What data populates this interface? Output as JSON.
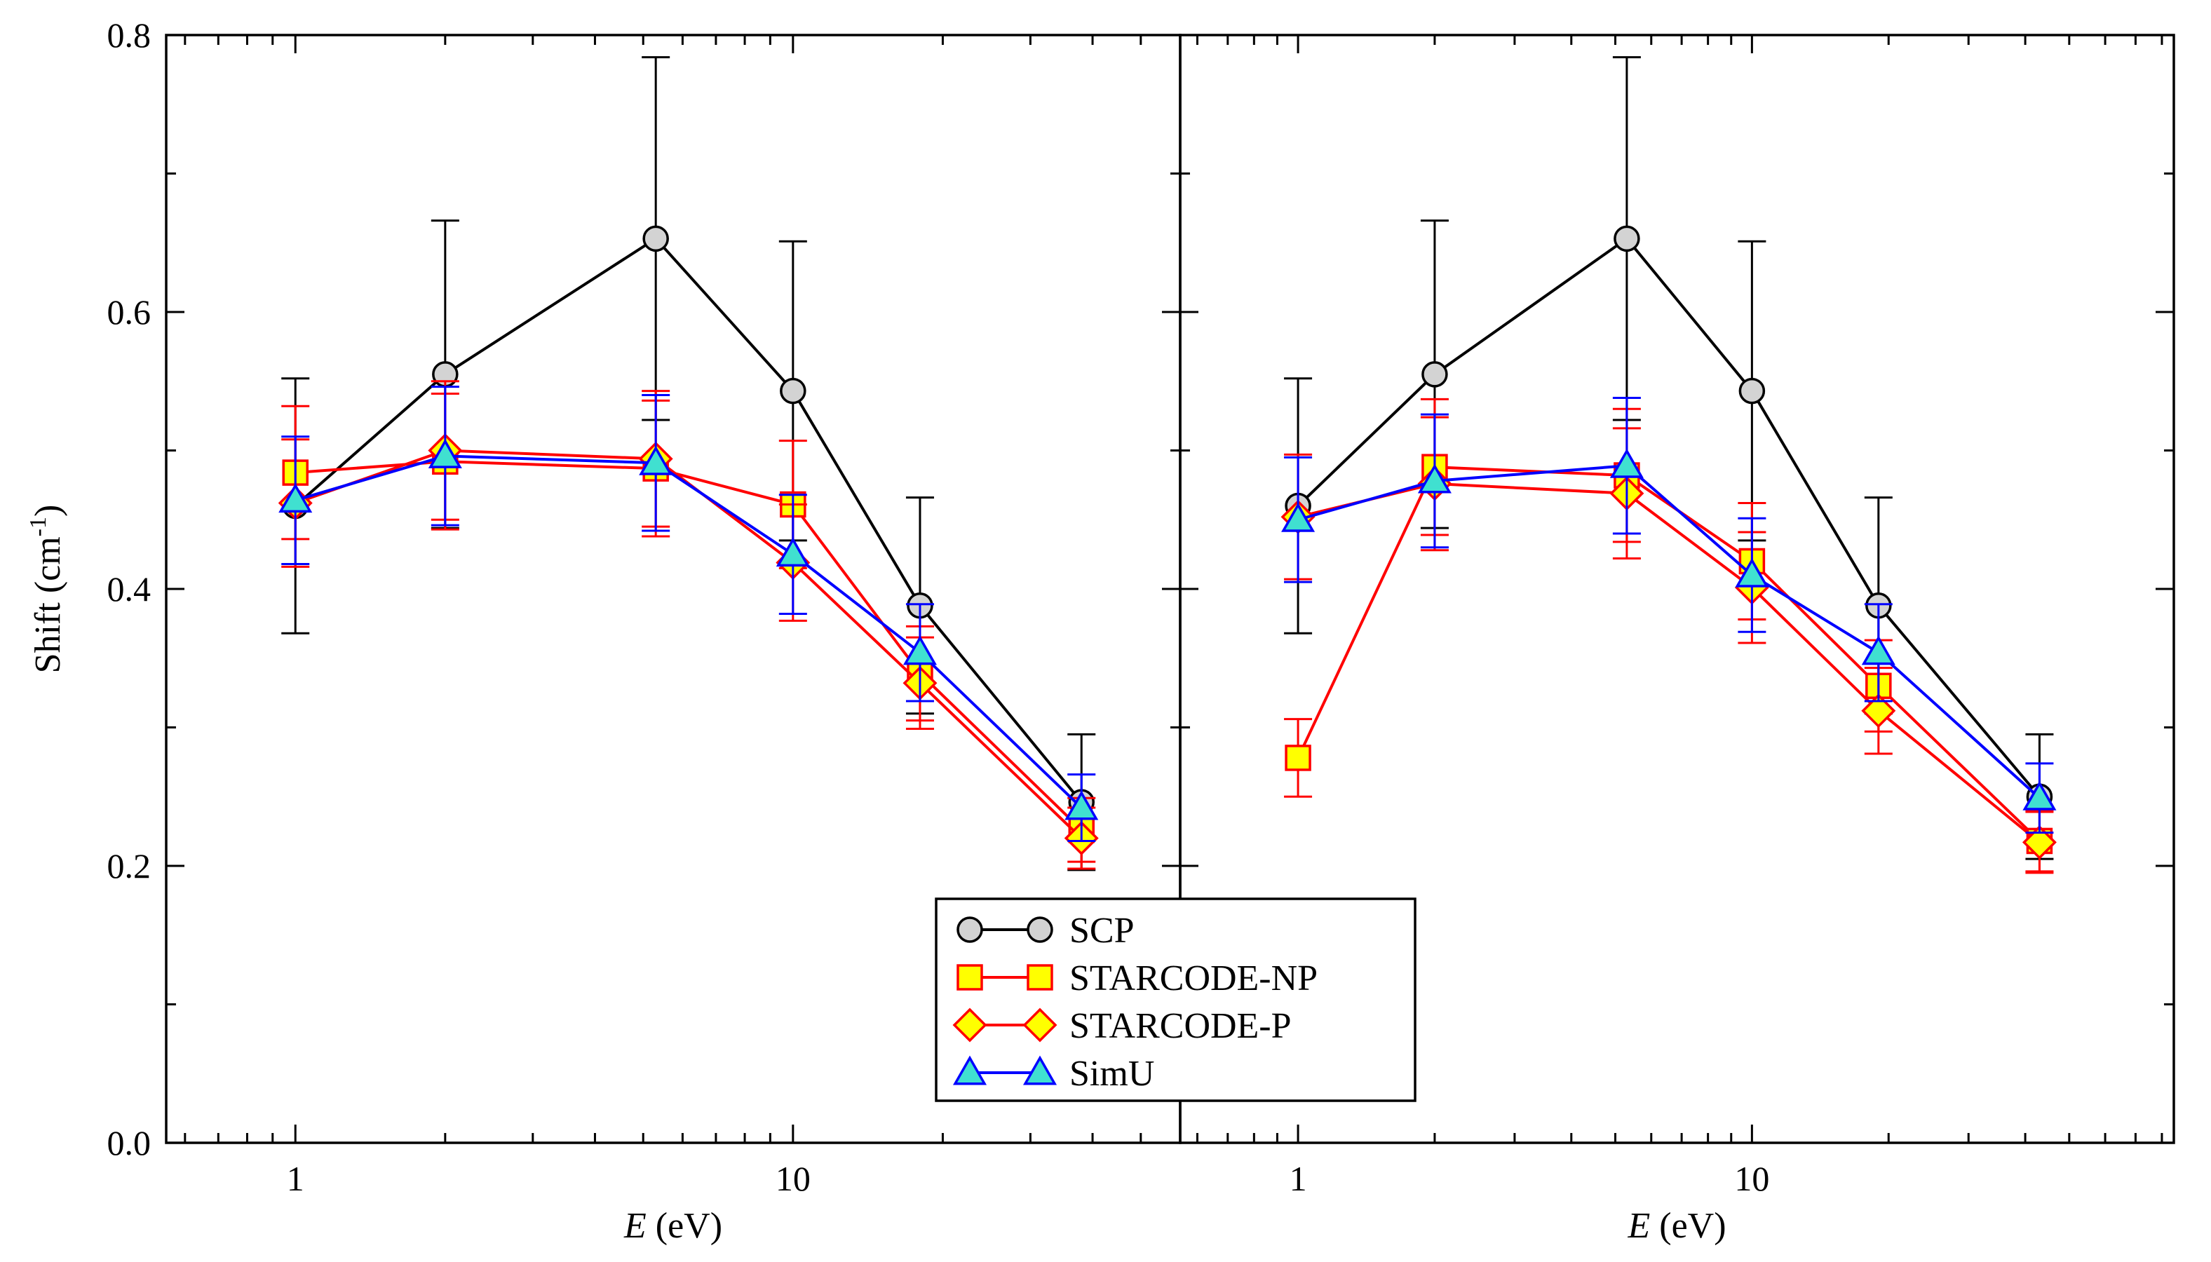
{
  "chart_data": [
    {
      "type": "line",
      "panel": "left",
      "xscale": "log",
      "xlim": [
        0.55,
        60
      ],
      "ylim": [
        0.0,
        0.8
      ],
      "xlabel": {
        "italic": "E",
        "rest": " (eV)"
      },
      "ylabel": "Shift (cm",
      "ylabel_sup": "-1",
      "ylabel_close": ")",
      "xticks": [
        "1",
        "10"
      ],
      "yticks": [
        "0.0",
        "0.2",
        "0.4",
        "0.6",
        "0.8"
      ],
      "series": [
        {
          "name": "SCP",
          "color": "#000000",
          "marker": "circle",
          "fill": "#d3d3d3",
          "x": [
            1,
            2,
            5.3,
            10,
            18,
            38
          ],
          "y": [
            0.46,
            0.555,
            0.653,
            0.543,
            0.388,
            0.246
          ],
          "err": [
            0.092,
            0.111,
            0.131,
            0.108,
            0.078,
            0.049
          ]
        },
        {
          "name": "STARCODE-NP",
          "color": "#ff0000",
          "marker": "square",
          "fill": "#ffff00",
          "x": [
            1,
            2,
            5.3,
            10,
            18,
            38
          ],
          "y": [
            0.484,
            0.492,
            0.487,
            0.461,
            0.339,
            0.226
          ],
          "err": [
            0.048,
            0.049,
            0.049,
            0.046,
            0.034,
            0.023
          ]
        },
        {
          "name": "STARCODE-P",
          "color": "#ff0000",
          "marker": "diamond",
          "fill": "#ffff00",
          "x": [
            1,
            2,
            5.3,
            10,
            18,
            38
          ],
          "y": [
            0.462,
            0.5,
            0.494,
            0.419,
            0.332,
            0.22
          ],
          "err": [
            0.046,
            0.05,
            0.049,
            0.042,
            0.033,
            0.022
          ]
        },
        {
          "name": "SimU",
          "color": "#0000ff",
          "marker": "triangle",
          "fill": "#40e0d0",
          "x": [
            1,
            2,
            5.3,
            10,
            18,
            38
          ],
          "y": [
            0.464,
            0.496,
            0.491,
            0.425,
            0.354,
            0.242
          ],
          "err": [
            0.046,
            0.05,
            0.049,
            0.043,
            0.035,
            0.024
          ]
        }
      ]
    },
    {
      "type": "line",
      "panel": "right",
      "xscale": "log",
      "xlim": [
        0.55,
        85
      ],
      "ylim": [
        0.0,
        0.8
      ],
      "xlabel": {
        "italic": "E",
        "rest": " (eV)"
      },
      "xticks": [
        "1",
        "10"
      ],
      "series": [
        {
          "name": "SCP",
          "color": "#000000",
          "marker": "circle",
          "fill": "#d3d3d3",
          "x": [
            1,
            2,
            5.3,
            10,
            19,
            43
          ],
          "y": [
            0.46,
            0.555,
            0.653,
            0.543,
            0.388,
            0.25
          ],
          "err": [
            0.092,
            0.111,
            0.131,
            0.108,
            0.078,
            0.045
          ]
        },
        {
          "name": "STARCODE-NP",
          "color": "#ff0000",
          "marker": "square",
          "fill": "#ffff00",
          "x": [
            1,
            2,
            5.3,
            10,
            19,
            43
          ],
          "y": [
            0.278,
            0.488,
            0.482,
            0.42,
            0.33,
            0.218
          ],
          "err": [
            0.028,
            0.049,
            0.048,
            0.042,
            0.033,
            0.022
          ]
        },
        {
          "name": "STARCODE-P",
          "color": "#ff0000",
          "marker": "diamond",
          "fill": "#ffff00",
          "x": [
            1,
            2,
            5.3,
            10,
            19,
            43
          ],
          "y": [
            0.452,
            0.476,
            0.469,
            0.401,
            0.312,
            0.217
          ],
          "err": [
            0.045,
            0.048,
            0.047,
            0.04,
            0.031,
            0.022
          ]
        },
        {
          "name": "SimU",
          "color": "#0000ff",
          "marker": "triangle",
          "fill": "#40e0d0",
          "x": [
            1,
            2,
            5.3,
            10,
            19,
            43
          ],
          "y": [
            0.45,
            0.478,
            0.489,
            0.41,
            0.354,
            0.249
          ],
          "err": [
            0.045,
            0.048,
            0.049,
            0.041,
            0.035,
            0.025
          ]
        }
      ]
    }
  ],
  "legend": {
    "placement": "bottom-center",
    "entries": [
      "SCP",
      "STARCODE-NP",
      "STARCODE-P",
      "SimU"
    ]
  }
}
